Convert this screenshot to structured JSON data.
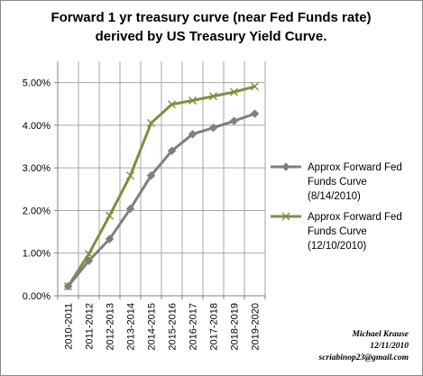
{
  "chart_data": {
    "type": "line",
    "title": "Forward 1 yr treasury curve (near Fed Funds rate) derived by US Treasury Yield Curve.",
    "title_lines": [
      "Forward 1 yr treasury curve (near Fed Funds rate)",
      "derived by US Treasury Yield Curve."
    ],
    "categories": [
      "2010-2011",
      "2011-2012",
      "2012-2013",
      "2013-2014",
      "2014-2015",
      "2015-2016",
      "2016-2017",
      "2017-2018",
      "2018-2019",
      "2019-2020"
    ],
    "y_ticks": [
      "0.00%",
      "1.00%",
      "2.00%",
      "3.00%",
      "4.00%",
      "5.00%"
    ],
    "ylim": [
      0,
      5.5
    ],
    "y_unit": "%",
    "grid": true,
    "legend_position": "right",
    "series": [
      {
        "name": "Approx Forward Fed Funds Curve (8/14/2010)",
        "legend_lines": [
          "Approx Forward Fed",
          "Funds Curve",
          "(8/14/2010)"
        ],
        "color": "#7f7f7f",
        "marker": "diamond",
        "values": [
          0.22,
          0.82,
          1.33,
          2.04,
          2.82,
          3.4,
          3.79,
          3.94,
          4.1,
          4.27
        ]
      },
      {
        "name": "Approx Forward Fed Funds Curve (12/10/2010)",
        "legend_lines": [
          "Approx Forward Fed",
          "Funds Curve",
          "(12/10/2010)"
        ],
        "color": "#77933c",
        "marker": "x",
        "values": [
          0.22,
          0.98,
          1.88,
          2.82,
          4.05,
          4.49,
          4.58,
          4.68,
          4.78,
          4.91
        ]
      }
    ]
  },
  "credit": {
    "author": "Michael Krause",
    "date": "12/11/2010",
    "email": "scriabinop23@gmail.com"
  }
}
